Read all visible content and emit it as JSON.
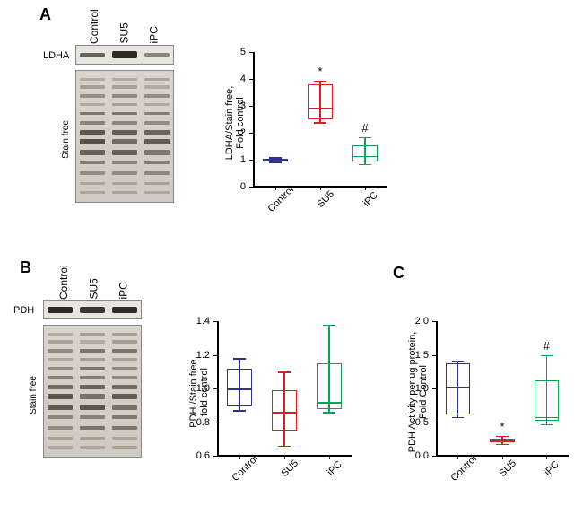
{
  "panels": {
    "A": "A",
    "B": "B",
    "C": "C"
  },
  "lane_labels": [
    "Control",
    "SU5",
    "iPC"
  ],
  "row_labels": {
    "ldha": "LDHA",
    "pdh": "PDH",
    "stainfree": "Stain free"
  },
  "colors": {
    "control": "#2e3192",
    "su5": "#e11b22",
    "ipc": "#00a651",
    "axis": "#000000",
    "blot_bg": "#e7e3dd",
    "sf_band_dark": "#555048",
    "sf_band_mid": "#7a736a",
    "sf_band_light": "#a39b90"
  },
  "bands": {
    "ldha": [
      {
        "intensity": "#696257",
        "h": 5
      },
      {
        "intensity": "#2e2a24",
        "h": 8
      },
      {
        "intensity": "#8b8478",
        "h": 4
      }
    ],
    "pdh": [
      {
        "intensity": "#2d2a26",
        "h": 7
      },
      {
        "intensity": "#3b3730",
        "h": 7
      },
      {
        "intensity": "#2f2c27",
        "h": 7
      }
    ]
  },
  "chart_A": {
    "ylabel_line1": "LDHA/Stain free,",
    "ylabel_line2": "Fold control",
    "ylim": [
      0,
      5
    ],
    "ystep": 1,
    "boxes": [
      {
        "color": "#2e3192",
        "min": 0.92,
        "q1": 0.95,
        "med": 1.0,
        "q3": 1.05,
        "max": 1.1,
        "sig": ""
      },
      {
        "color": "#e11b22",
        "min": 2.4,
        "q1": 2.5,
        "med": 2.95,
        "q3": 3.8,
        "max": 3.95,
        "sig": "*"
      },
      {
        "color": "#00a651",
        "min": 0.85,
        "q1": 0.95,
        "med": 1.15,
        "q3": 1.55,
        "max": 1.85,
        "sig": "#"
      }
    ]
  },
  "chart_B": {
    "ylabel_line1": "PDH /Stain free,",
    "ylabel_line2": "fold control",
    "ylim": [
      0.6,
      1.4
    ],
    "ystep": 0.2,
    "boxes": [
      {
        "color": "#2e3192",
        "min": 0.87,
        "q1": 0.9,
        "med": 1.0,
        "q3": 1.12,
        "max": 1.18,
        "sig": ""
      },
      {
        "color": "#e11b22",
        "min": 0.66,
        "q1": 0.75,
        "med": 0.86,
        "q3": 0.99,
        "max": 1.1,
        "sig": ""
      },
      {
        "color": "#00a651",
        "min": 0.86,
        "q1": 0.88,
        "med": 0.92,
        "q3": 1.15,
        "max": 1.38,
        "sig": ""
      }
    ]
  },
  "chart_C": {
    "ylabel_line1": "PDH Activity per ug protein,",
    "ylabel_line2": "Fold Control",
    "ylim": [
      0.0,
      2.0
    ],
    "ystep": 0.5,
    "boxes": [
      {
        "color": "#2e3192",
        "min": 0.58,
        "q1": 0.62,
        "med": 1.03,
        "q3": 1.38,
        "max": 1.42,
        "sig": ""
      },
      {
        "color": "#e11b22",
        "min": 0.18,
        "q1": 0.2,
        "med": 0.23,
        "q3": 0.26,
        "max": 0.3,
        "sig": "*"
      },
      {
        "color": "#00a651",
        "min": 0.47,
        "q1": 0.52,
        "med": 0.58,
        "q3": 1.12,
        "max": 1.5,
        "sig": "#"
      }
    ]
  }
}
